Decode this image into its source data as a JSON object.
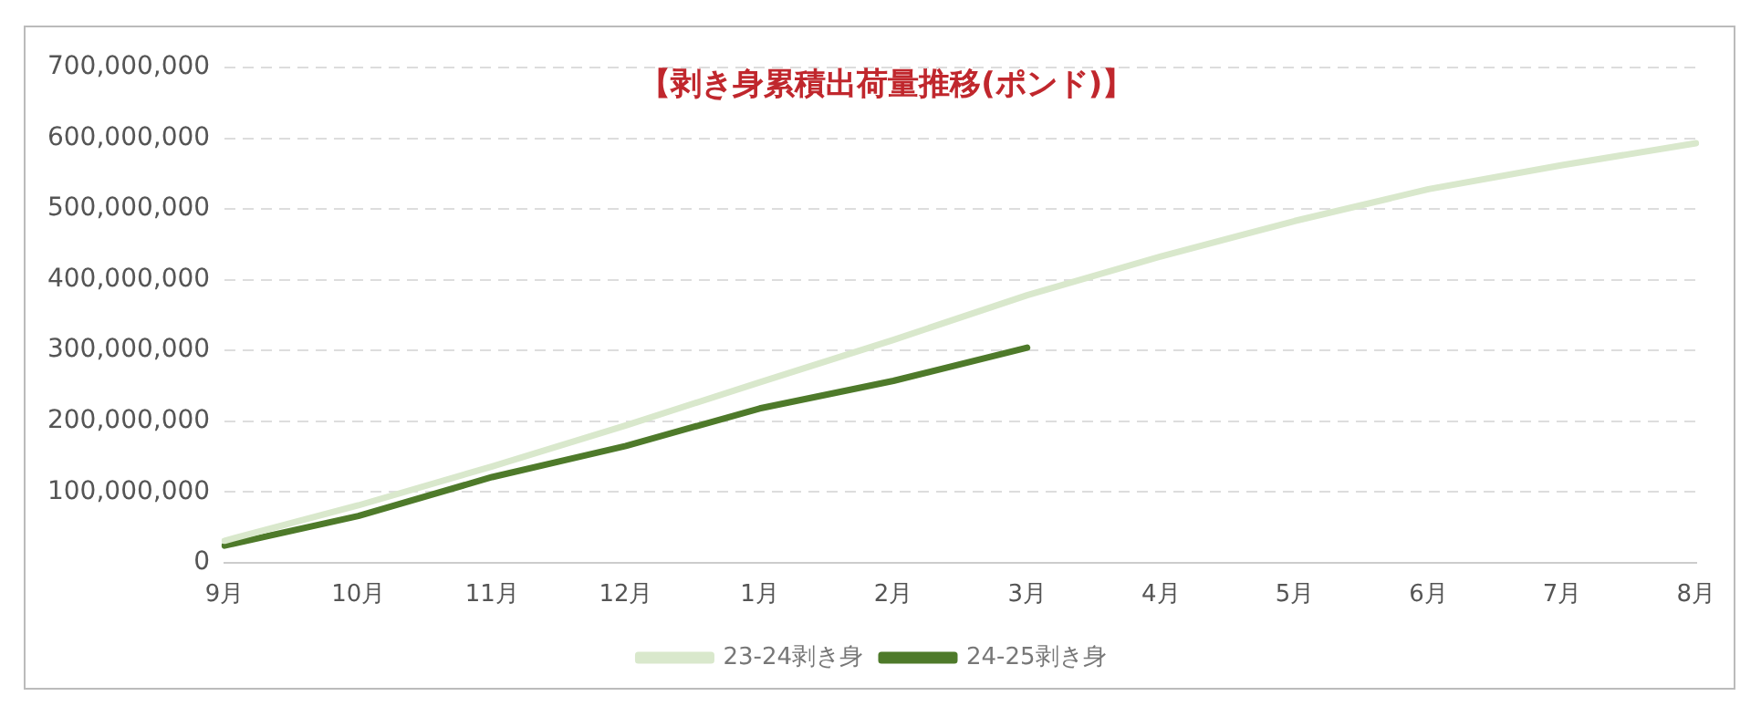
{
  "chart_data": {
    "type": "line",
    "title": "【剥き身累積出荷量推移(ポンド)】",
    "categories": [
      "9月",
      "10月",
      "11月",
      "12月",
      "1月",
      "2月",
      "3月",
      "4月",
      "5月",
      "6月",
      "7月",
      "8月"
    ],
    "series": [
      {
        "name": "23-24剥き身",
        "color": "#d9e8cc",
        "values": [
          31000000,
          81000000,
          136000000,
          194000000,
          255000000,
          315000000,
          378000000,
          433000000,
          483000000,
          528000000,
          562000000,
          593000000
        ]
      },
      {
        "name": "24-25剥き身",
        "color": "#4e7a2a",
        "values": [
          24000000,
          66000000,
          121000000,
          165000000,
          218000000,
          257000000,
          304000000,
          null,
          null,
          null,
          null,
          null
        ]
      }
    ],
    "ylim": [
      0,
      700000000
    ],
    "yticks": [
      0,
      {
        "value": 100000000,
        "label": "100,000,000"
      },
      {
        "value": 200000000,
        "label": "200,000,000"
      },
      {
        "value": 300000000,
        "label": "300,000,000"
      },
      {
        "value": 400000000,
        "label": "400,000,000"
      },
      {
        "value": 500000000,
        "label": "500,000,000"
      },
      {
        "value": 600000000,
        "label": "600,000,000"
      },
      {
        "value": 700000000,
        "label": "700,000,000"
      }
    ],
    "grid": "y",
    "legend": "bottom",
    "marker": "none",
    "line_style": "solid"
  }
}
